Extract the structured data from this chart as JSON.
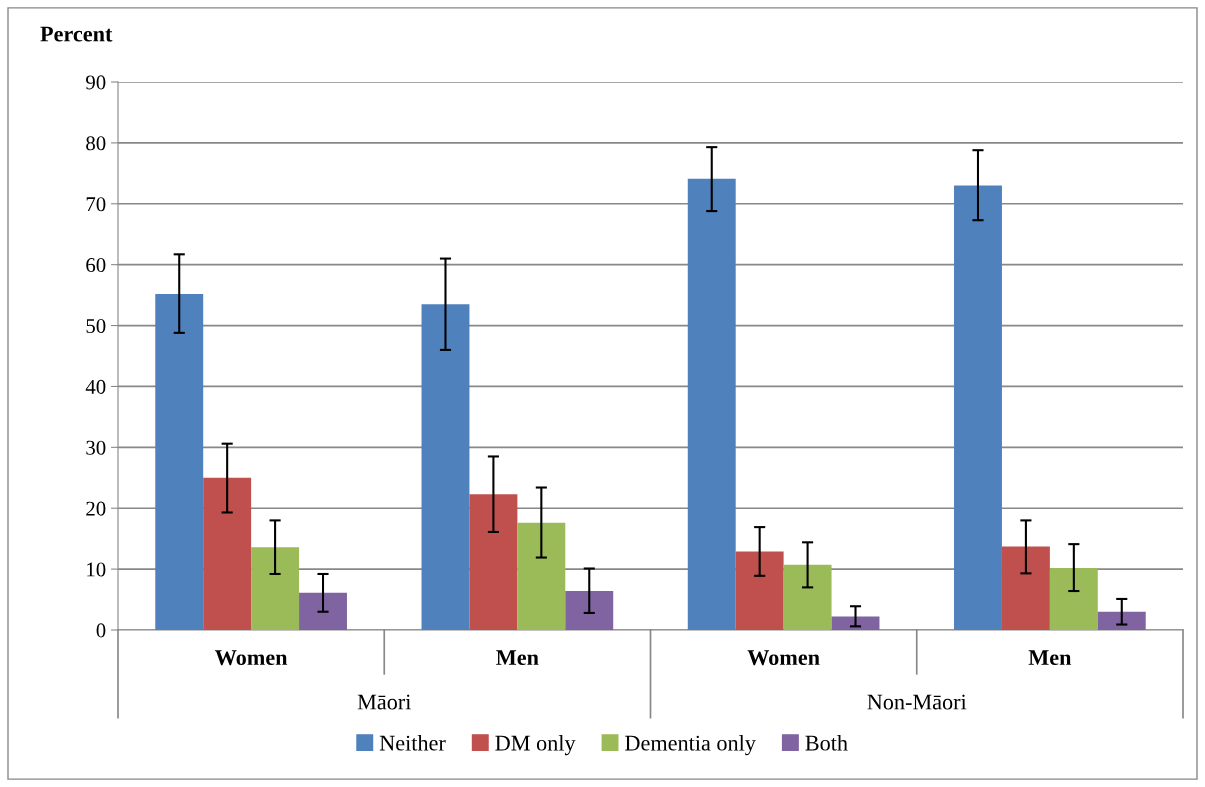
{
  "chart_data": {
    "type": "bar",
    "ylabel": "Percent",
    "categories": [
      "Women",
      "Men",
      "Women",
      "Men"
    ],
    "annotations": [
      "Māori",
      "Non-Māori"
    ],
    "series": [
      {
        "name": "Neither",
        "color": "#4f81bd",
        "values": [
          55.2,
          53.5,
          74.1,
          73.0
        ],
        "errors": [
          [
            48.8,
            61.7
          ],
          [
            46.0,
            61.0
          ],
          [
            68.8,
            79.3
          ],
          [
            67.3,
            78.8
          ]
        ]
      },
      {
        "name": "DM only",
        "color": "#c0504d",
        "values": [
          25.0,
          22.3,
          12.9,
          13.7
        ],
        "errors": [
          [
            19.3,
            30.6
          ],
          [
            16.1,
            28.5
          ],
          [
            8.9,
            16.9
          ],
          [
            9.3,
            18.0
          ]
        ]
      },
      {
        "name": "Dementia only",
        "color": "#9bbb59",
        "values": [
          13.6,
          17.6,
          10.7,
          10.2
        ],
        "errors": [
          [
            9.2,
            18.0
          ],
          [
            11.9,
            23.4
          ],
          [
            7.0,
            14.4
          ],
          [
            6.4,
            14.1
          ]
        ]
      },
      {
        "name": "Both",
        "color": "#8064a2",
        "values": [
          6.1,
          6.4,
          2.2,
          3.0
        ],
        "errors": [
          [
            3.0,
            9.2
          ],
          [
            2.8,
            10.1
          ],
          [
            0.6,
            3.9
          ],
          [
            0.9,
            5.1
          ]
        ]
      }
    ],
    "ylim": [
      0,
      90
    ],
    "yticks": [
      0,
      10,
      20,
      30,
      40,
      50,
      60,
      70,
      80,
      90
    ],
    "grid": "y",
    "legend": "bottom"
  }
}
